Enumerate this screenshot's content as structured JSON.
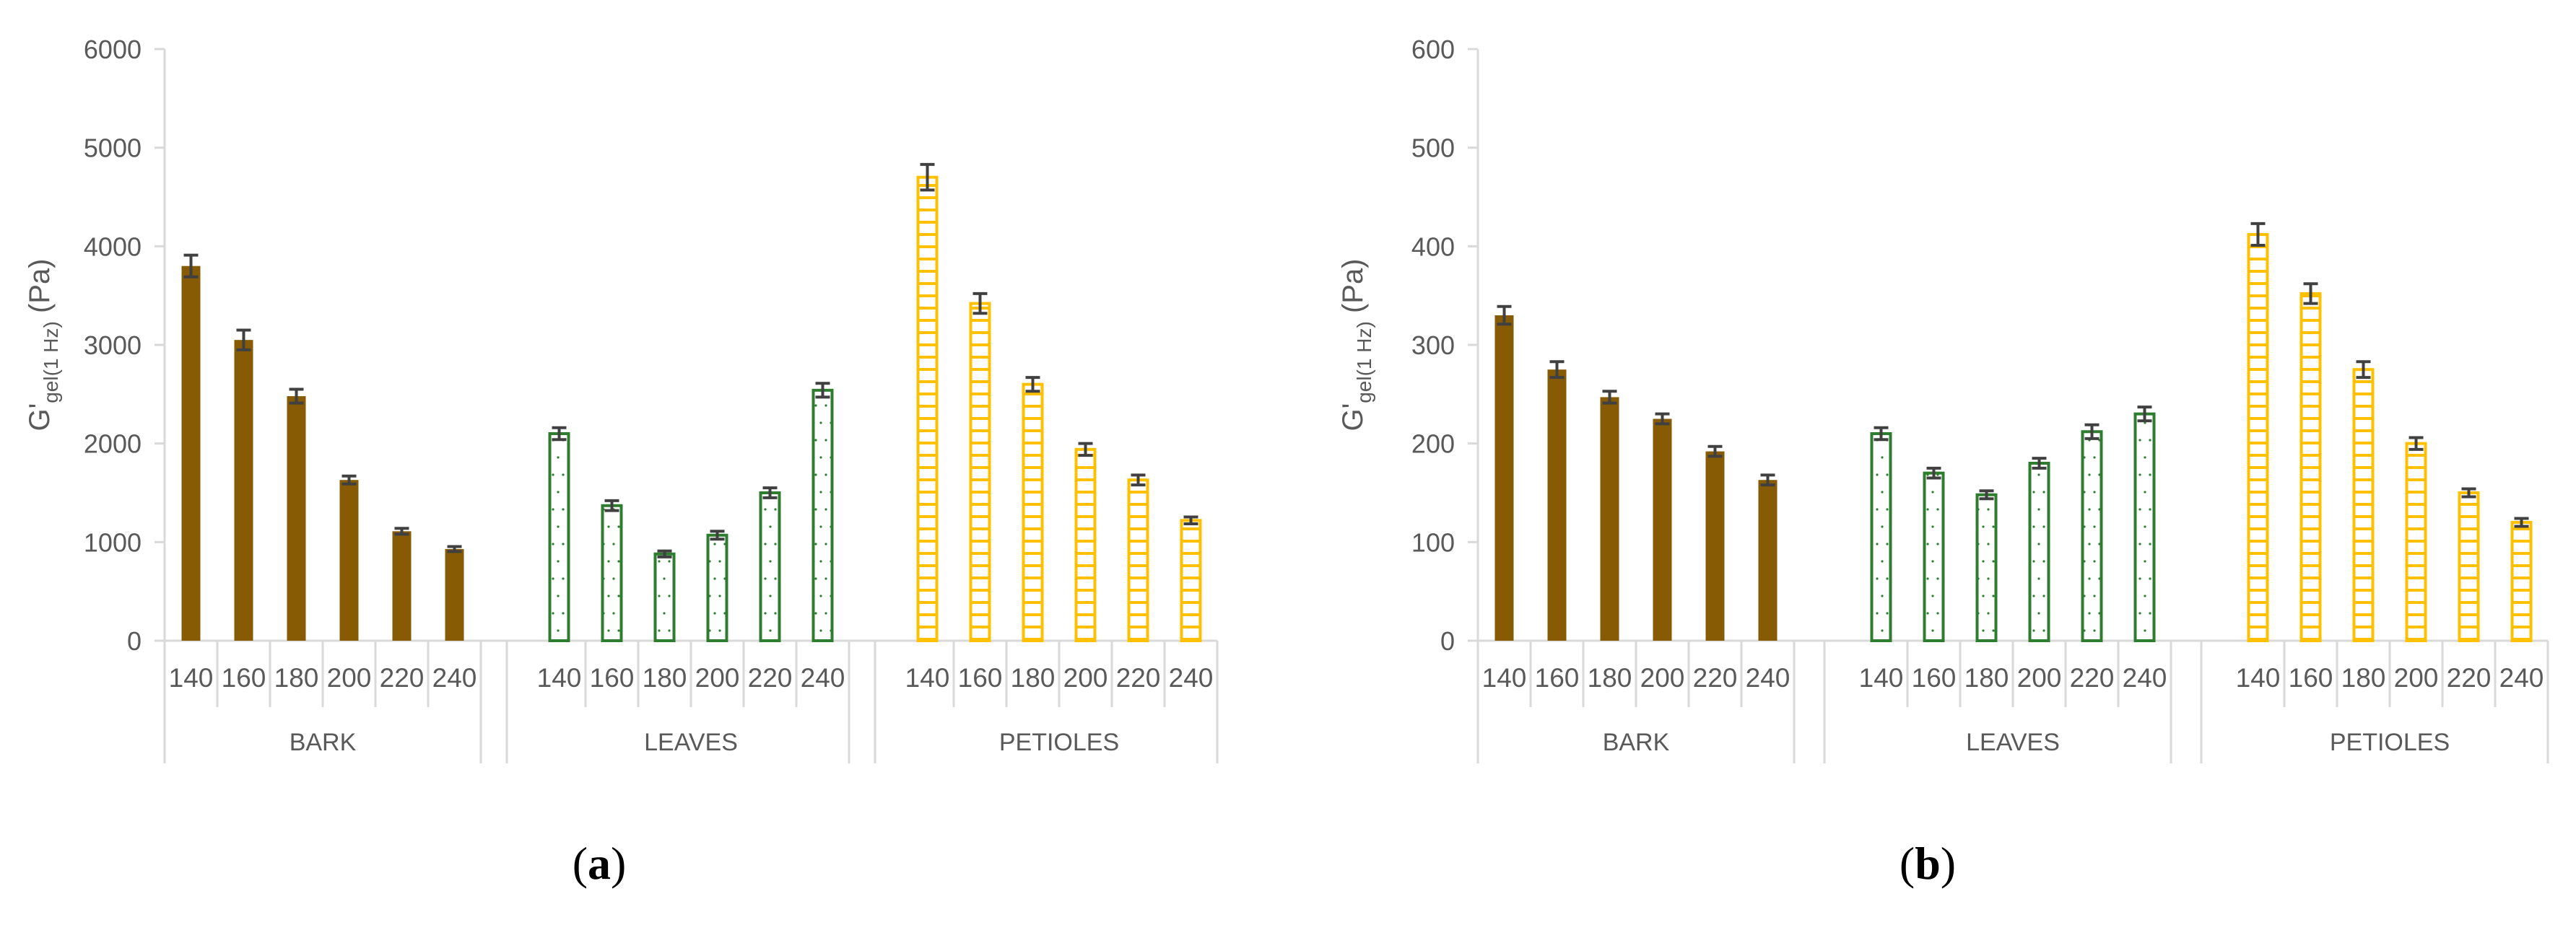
{
  "chart_data": [
    {
      "panel": "a",
      "type": "bar",
      "title": "",
      "xlabel": "",
      "ylabel": {
        "main": "G'",
        "sub": "gel(1 Hz)",
        "unit": "(Pa)"
      },
      "ylim": [
        0,
        6000
      ],
      "yticks": [
        0,
        1000,
        2000,
        3000,
        4000,
        5000,
        6000
      ],
      "groups": [
        {
          "name": "BARK",
          "categories": [
            "140",
            "160",
            "180",
            "200",
            "220",
            "240"
          ],
          "values": [
            3800,
            3050,
            2480,
            1630,
            1110,
            930
          ],
          "errors": [
            110,
            100,
            70,
            40,
            30,
            25
          ]
        },
        {
          "name": "LEAVES",
          "categories": [
            "140",
            "160",
            "180",
            "200",
            "220",
            "240"
          ],
          "values": [
            2100,
            1370,
            880,
            1070,
            1500,
            2540
          ],
          "errors": [
            60,
            50,
            30,
            40,
            50,
            70
          ]
        },
        {
          "name": "PETIOLES",
          "categories": [
            "140",
            "160",
            "180",
            "200",
            "220",
            "240"
          ],
          "values": [
            4700,
            3420,
            2600,
            1940,
            1630,
            1220
          ],
          "errors": [
            130,
            100,
            70,
            60,
            50,
            35
          ]
        }
      ],
      "caption": "(a)"
    },
    {
      "panel": "b",
      "type": "bar",
      "title": "",
      "xlabel": "",
      "ylabel": {
        "main": "G'",
        "sub": "gel(1 Hz)",
        "unit": "(Pa)"
      },
      "ylim": [
        0,
        600
      ],
      "yticks": [
        0,
        100,
        200,
        300,
        400,
        500,
        600
      ],
      "groups": [
        {
          "name": "BARK",
          "categories": [
            "140",
            "160",
            "180",
            "200",
            "220",
            "240"
          ],
          "values": [
            330,
            275,
            247,
            225,
            192,
            163
          ],
          "errors": [
            9,
            8,
            6,
            5,
            5,
            5
          ]
        },
        {
          "name": "LEAVES",
          "categories": [
            "140",
            "160",
            "180",
            "200",
            "220",
            "240"
          ],
          "values": [
            210,
            170,
            148,
            180,
            212,
            230
          ],
          "errors": [
            6,
            5,
            4,
            5,
            7,
            7
          ]
        },
        {
          "name": "PETIOLES",
          "categories": [
            "140",
            "160",
            "180",
            "200",
            "220",
            "240"
          ],
          "values": [
            412,
            352,
            275,
            200,
            150,
            120
          ],
          "errors": [
            11,
            10,
            8,
            6,
            4,
            4
          ]
        }
      ],
      "caption": "(b)"
    }
  ],
  "colors": {
    "bark": "#865B04",
    "leaves": "#2E7D2E",
    "petioles": "#FFC000",
    "axis": "#D9D9D9",
    "text": "#595959",
    "errorbar": "#404040"
  }
}
